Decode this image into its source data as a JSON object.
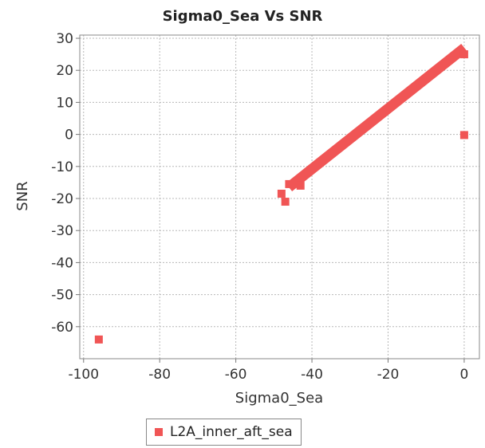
{
  "chart_data": {
    "type": "scatter",
    "title": "Sigma0_Sea Vs SNR",
    "xlabel": "Sigma0_Sea",
    "ylabel": "SNR",
    "xlim": [
      -101,
      4
    ],
    "ylim": [
      -70,
      31
    ],
    "xticks": [
      -100,
      -80,
      -60,
      -40,
      -20,
      0
    ],
    "yticks": [
      30,
      20,
      10,
      0,
      -10,
      -20,
      -30,
      -40,
      -50,
      -60
    ],
    "grid": true,
    "legend_position": "bottom",
    "series": [
      {
        "name": "L2A_inner_aft_sea",
        "color": "#f05555",
        "band": {
          "from": [
            -45,
            -15.5
          ],
          "to": [
            -1,
            26
          ]
        },
        "points": [
          {
            "x": -96,
            "y": -64
          },
          {
            "x": -48,
            "y": -18.5
          },
          {
            "x": -47,
            "y": -21
          },
          {
            "x": -46,
            "y": -15.5
          },
          {
            "x": -43,
            "y": -16
          },
          {
            "x": 0,
            "y": -0.2
          },
          {
            "x": 0,
            "y": 25
          }
        ]
      }
    ]
  }
}
